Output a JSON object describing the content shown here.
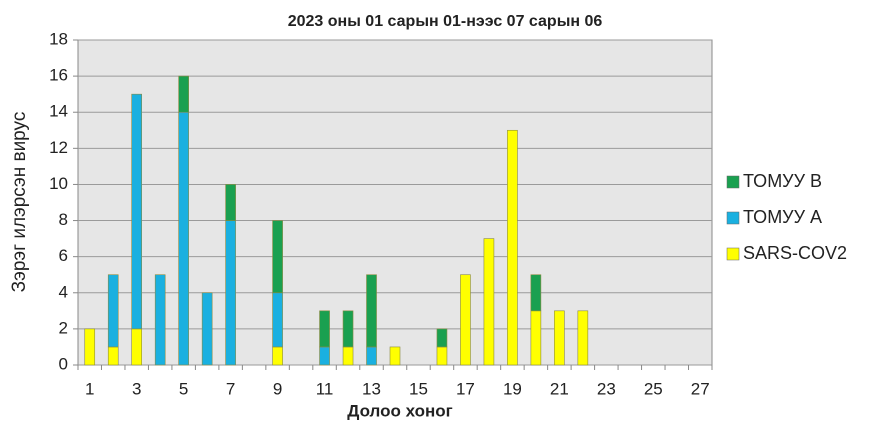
{
  "chart_data": {
    "type": "stacked_bar",
    "title": "2023 оны 01 сарын 01-нээс 07 сарын 06",
    "x_label": "Долоо хоног",
    "y_label": "Зэрэг илэрсэн вирус",
    "categories": [
      1,
      null,
      3,
      null,
      5,
      null,
      7,
      null,
      9,
      null,
      11,
      null,
      13,
      null,
      15,
      null,
      17,
      null,
      19,
      null,
      21,
      null,
      23,
      null,
      25,
      null,
      27
    ],
    "series": [
      {
        "name": "SARS-COV2",
        "color": "#ffff00",
        "values": [
          2,
          1,
          2,
          0,
          0,
          0,
          0,
          0,
          1,
          0,
          0,
          1,
          0,
          1,
          0,
          1,
          5,
          7,
          13,
          3,
          3,
          3,
          0,
          0,
          0,
          0,
          0
        ]
      },
      {
        "name": "ТОМУУ A",
        "color": "#1ab0e0",
        "values": [
          0,
          4,
          13,
          5,
          14,
          4,
          8,
          0,
          3,
          0,
          1,
          0,
          1,
          0,
          0,
          0,
          0,
          0,
          0,
          0,
          0,
          0,
          0,
          0,
          0,
          0,
          0
        ]
      },
      {
        "name": "ТОМУУ B",
        "color": "#1aa050",
        "values": [
          0,
          0,
          0,
          0,
          2,
          0,
          2,
          0,
          4,
          0,
          2,
          2,
          4,
          0,
          0,
          1,
          0,
          0,
          0,
          2,
          0,
          0,
          0,
          0,
          0,
          0,
          0
        ]
      }
    ],
    "ylim": [
      0,
      18
    ],
    "yticks": [
      0,
      2,
      4,
      6,
      8,
      10,
      12,
      14,
      16,
      18
    ],
    "grid": true,
    "legend": "right"
  }
}
